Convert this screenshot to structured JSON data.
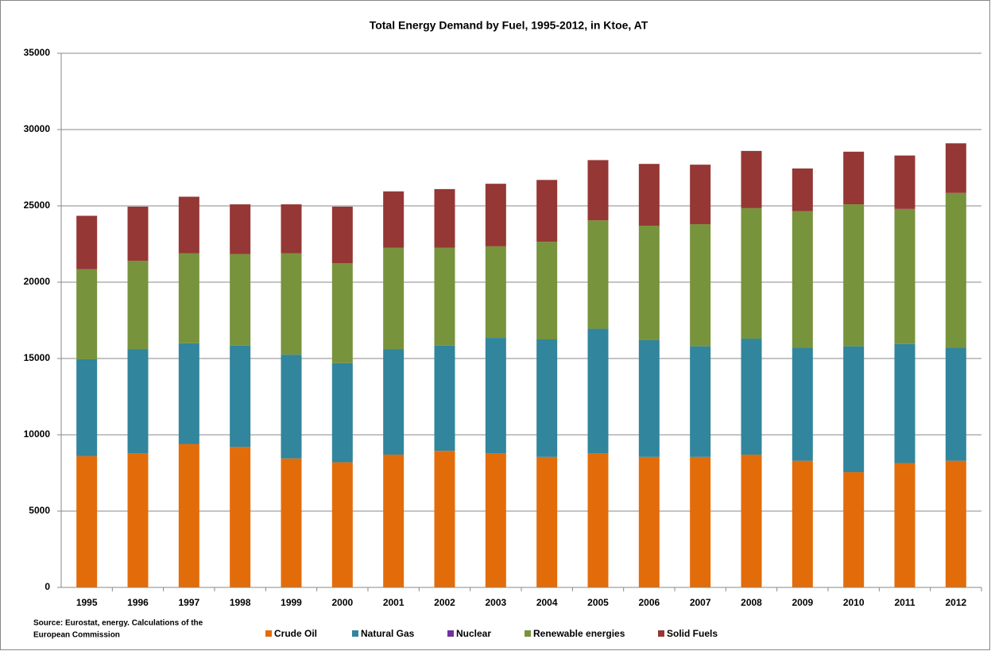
{
  "chart_data": {
    "type": "stacked_bar",
    "title": "Total Energy Demand by Fuel, 1995-2012, in Ktoe, AT",
    "source": [
      "Source: Eurostat, energy. Calculations of the",
      "European Commission"
    ],
    "categories": [
      "1995",
      "1996",
      "1997",
      "1998",
      "1999",
      "2000",
      "2001",
      "2002",
      "2003",
      "2004",
      "2005",
      "2006",
      "2007",
      "2008",
      "2009",
      "2010",
      "2011",
      "2012"
    ],
    "series": [
      {
        "name": "Crude Oil",
        "color": "#e36c0a",
        "values": [
          8600,
          8800,
          9400,
          9200,
          8450,
          8200,
          8700,
          8950,
          8800,
          8550,
          8800,
          8550,
          8550,
          8700,
          8300,
          7550,
          8150,
          8300
        ]
      },
      {
        "name": "Natural Gas",
        "color": "#31859c",
        "values": [
          6350,
          6800,
          6600,
          6650,
          6800,
          6500,
          6900,
          6900,
          7550,
          7700,
          8150,
          7650,
          7250,
          7600,
          7400,
          8250,
          7800,
          7400
        ]
      },
      {
        "name": "Nuclear",
        "color": "#7030a0",
        "values": [
          0,
          0,
          0,
          0,
          0,
          0,
          0,
          0,
          0,
          0,
          0,
          0,
          0,
          0,
          0,
          0,
          0,
          0
        ]
      },
      {
        "name": "Renewable energies",
        "color": "#77933c",
        "values": [
          5900,
          5800,
          5900,
          6000,
          6650,
          6550,
          6650,
          6400,
          6000,
          6400,
          7100,
          7500,
          8000,
          8550,
          8950,
          9300,
          8850,
          10150
        ]
      },
      {
        "name": "Solid Fuels",
        "color": "#953735",
        "values": [
          3500,
          3550,
          3700,
          3250,
          3200,
          3700,
          3700,
          3850,
          4100,
          4050,
          3950,
          4050,
          3900,
          3750,
          2800,
          3450,
          3500,
          3250
        ]
      }
    ],
    "ylim": [
      0,
      35000
    ],
    "yticks": [
      0,
      5000,
      10000,
      15000,
      20000,
      25000,
      30000,
      35000
    ],
    "grid": true,
    "legend": "bottom"
  }
}
